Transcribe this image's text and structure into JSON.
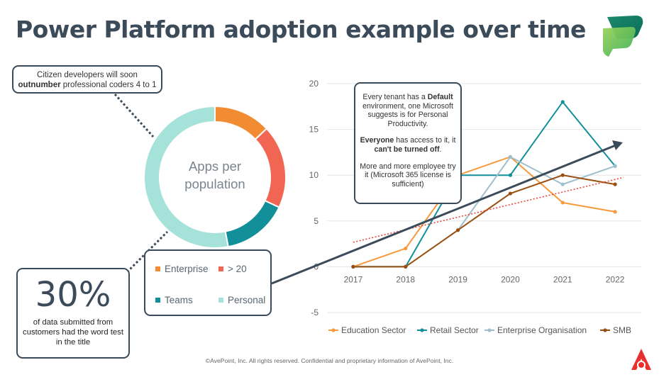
{
  "title": "Power Platform adoption example over time",
  "citizen_callout": {
    "line1": "Citizen developers will soon",
    "bold": "outnumber",
    "line2_rest": " professional coders 4 to 1"
  },
  "tenant_callout": {
    "p1_a": "Every tenant has a ",
    "p1_bold": "Default",
    "p1_b": " environment, one Microsoft suggests is for Personal Productivity.",
    "p2_bold1": "Everyone",
    "p2_a": " has access to it, it ",
    "p2_bold2": "can't be turned off",
    "p2_b": ".",
    "p3": "More and more employee try it (Microsoft 365 license is sufficient)"
  },
  "stat_callout": {
    "value": "30%",
    "text": "of data submitted from customers had the word test in the title"
  },
  "footer": "©AvePoint, Inc. All rights reserved. Confidential and proprietary information of AvePoint, Inc.",
  "chart_data": [
    {
      "type": "pie",
      "title": "Apps per population",
      "donut": true,
      "slices": [
        {
          "label": "Enterprise",
          "value": 13,
          "color": "#f28c33"
        },
        {
          "label": "> 20",
          "value": 19,
          "color": "#f16652"
        },
        {
          "label": "Teams",
          "value": 15,
          "color": "#12909a"
        },
        {
          "label": "Personal",
          "value": 53,
          "color": "#a5e2d9"
        }
      ]
    },
    {
      "type": "line",
      "categories": [
        "2017",
        "2018",
        "2019",
        "2020",
        "2021",
        "2022"
      ],
      "ylim": [
        -5,
        20
      ],
      "yticks": [
        -5,
        0,
        5,
        10,
        15,
        20
      ],
      "grid": true,
      "legend": "bottom",
      "series": [
        {
          "name": "Education Sector",
          "color": "#f7993a",
          "values": [
            0,
            2,
            10,
            12,
            7,
            6
          ]
        },
        {
          "name": "Retail Sector",
          "color": "#12909a",
          "values": [
            0,
            0,
            10,
            10,
            18,
            11
          ]
        },
        {
          "name": "Enterprise Organisation",
          "color": "#9fbfcc",
          "values": [
            0,
            0,
            4,
            12,
            9,
            11
          ]
        },
        {
          "name": "SMB",
          "color": "#9a4f10",
          "values": [
            0,
            0,
            4,
            8,
            10,
            9
          ]
        }
      ]
    }
  ]
}
